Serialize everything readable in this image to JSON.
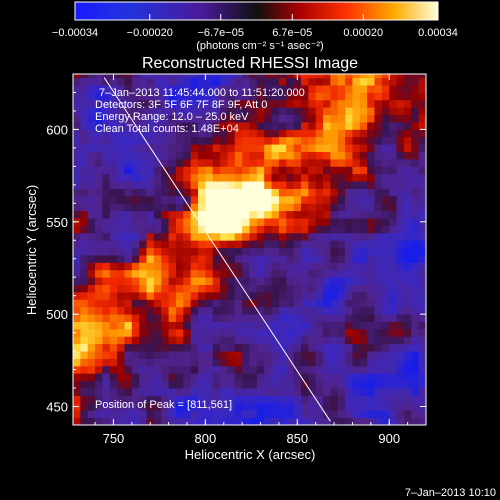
{
  "colorbar": {
    "tick_labels": [
      "−0.00034",
      "−0.00020",
      "−6.7e−05",
      "6.7e−05",
      "0.00020",
      "0.00034"
    ],
    "tick_values": [
      -0.00034,
      -0.0002,
      -6.7e-05,
      6.7e-05,
      0.0002,
      0.00034
    ],
    "range": [
      -0.00034,
      0.00034
    ],
    "units_text": "(photons cm⁻² s⁻¹ asec⁻²)"
  },
  "chart_data": {
    "type": "heatmap",
    "title": "Reconstructed RHESSI Image",
    "xlabel": "Heliocentric X (arcsec)",
    "ylabel": "Heliocentric Y (arcsec)",
    "xlim": [
      728,
      920
    ],
    "ylim": [
      440,
      630
    ],
    "x_ticks": [
      750,
      800,
      850,
      900
    ],
    "y_ticks": [
      450,
      500,
      550,
      600
    ],
    "x_tick_labels": [
      "750",
      "800",
      "850",
      "900"
    ],
    "y_tick_labels": [
      "450",
      "500",
      "550",
      "600"
    ],
    "colormap": "RHESSI blue-purple-red-yellow-white",
    "peak": [
      811,
      561
    ],
    "limb_line": [
      [
        745,
        628
      ],
      [
        868,
        442
      ]
    ]
  },
  "annotations": {
    "time_range": "7–Jan–2013 11:45:44.000 to 11:51:20.000",
    "detectors": "Detectors: 3F 5F 6F 7F 8F 9F, Att 0",
    "energy": "Energy Range: 12.0 – 25.0 keV",
    "clean_counts": "Clean    Total counts: 1.48E+04",
    "peak_position": "Position of Peak = [811,561]"
  },
  "footer": {
    "date": "7–Jan–2013 10:10"
  }
}
